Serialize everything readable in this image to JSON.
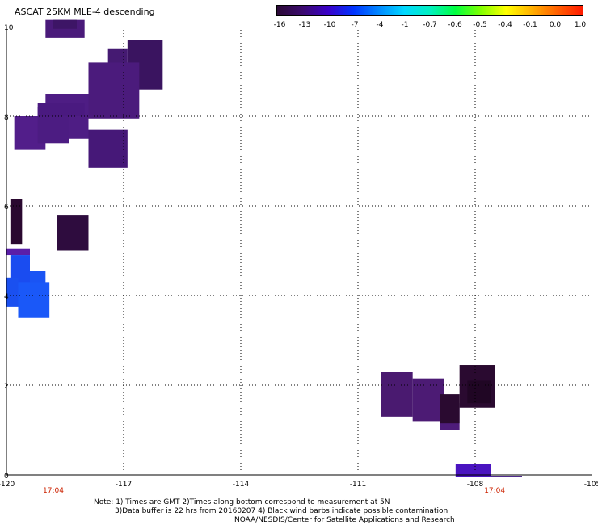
{
  "title": "ASCAT 25KM MLE-4 descending",
  "colorbar": {
    "labels": [
      "-16",
      "-13",
      "-10",
      "-7",
      "-4",
      "-1",
      "-0.7",
      "-0.6",
      "-0.5",
      "-0.4",
      "-0.1",
      "0.0",
      "1.0"
    ],
    "colors": [
      "#2b0a36",
      "#3b0a6e",
      "#3a00c8",
      "#0033ff",
      "#0088ff",
      "#00d8ff",
      "#00f0c0",
      "#00ff40",
      "#80ff00",
      "#ffff00",
      "#ffb000",
      "#ff6000",
      "#ff1a00"
    ]
  },
  "map": {
    "x_ticks": [
      "-120",
      "-117",
      "-114",
      "-111",
      "-108",
      "-105"
    ],
    "y_ticks": [
      "0",
      "2",
      "4",
      "6",
      "8",
      "10"
    ],
    "lon_range": [
      -120,
      -105
    ],
    "lat_range": [
      0,
      10
    ],
    "time_labels": [
      {
        "text": "17:04",
        "lon": -118.8
      },
      {
        "text": "17:04",
        "lon": -107.5
      }
    ],
    "time_label_color": "#cc2200"
  },
  "wind_cells": [
    {
      "lon0": -119.0,
      "lon1": -118.0,
      "lat0": 9.75,
      "lat1": 10.15,
      "color": "#4a1a7a"
    },
    {
      "lon0": -118.8,
      "lon1": -118.2,
      "lat0": 9.95,
      "lat1": 10.15,
      "color": "#3d1566"
    },
    {
      "lon0": -116.9,
      "lon1": -116.0,
      "lat0": 8.6,
      "lat1": 9.7,
      "color": "#3a1460"
    },
    {
      "lon0": -117.4,
      "lon1": -116.9,
      "lat0": 8.3,
      "lat1": 9.5,
      "color": "#451a72"
    },
    {
      "lon0": -117.9,
      "lon1": -116.6,
      "lat0": 7.95,
      "lat1": 9.2,
      "color": "#4b1b7c"
    },
    {
      "lon0": -119.0,
      "lon1": -117.9,
      "lat0": 7.5,
      "lat1": 8.5,
      "color": "#4e1d84"
    },
    {
      "lon0": -119.8,
      "lon1": -119.0,
      "lat0": 7.25,
      "lat1": 8.0,
      "color": "#521e8a"
    },
    {
      "lon0": -119.2,
      "lon1": -118.4,
      "lat0": 7.4,
      "lat1": 8.2,
      "color": "#4c1c82"
    },
    {
      "lon0": -119.2,
      "lon1": -118.0,
      "lat0": 8.0,
      "lat1": 8.3,
      "color": "#4a1a80"
    },
    {
      "lon0": -117.9,
      "lon1": -116.9,
      "lat0": 6.85,
      "lat1": 7.7,
      "color": "#461878"
    },
    {
      "lon0": -119.9,
      "lon1": -119.6,
      "lat0": 5.15,
      "lat1": 6.15,
      "color": "#2a0830"
    },
    {
      "lon0": -118.7,
      "lon1": -117.9,
      "lat0": 5.0,
      "lat1": 5.8,
      "color": "#2e0c3e"
    },
    {
      "lon0": -120.0,
      "lon1": -119.4,
      "lat0": 4.9,
      "lat1": 5.05,
      "color": "#5a1ea8"
    },
    {
      "lon0": -119.9,
      "lon1": -119.4,
      "lat0": 3.9,
      "lat1": 4.9,
      "color": "#1a4cf0"
    },
    {
      "lon0": -119.4,
      "lon1": -119.0,
      "lat0": 3.95,
      "lat1": 4.55,
      "color": "#1a54f4"
    },
    {
      "lon0": -119.7,
      "lon1": -118.9,
      "lat0": 3.5,
      "lat1": 4.3,
      "color": "#1a58f8"
    },
    {
      "lon0": -120.0,
      "lon1": -119.7,
      "lat0": 3.75,
      "lat1": 4.4,
      "color": "#1a50f0"
    },
    {
      "lon0": -110.4,
      "lon1": -109.6,
      "lat0": 1.3,
      "lat1": 2.3,
      "color": "#4a1a70"
    },
    {
      "lon0": -109.6,
      "lon1": -108.8,
      "lat0": 1.2,
      "lat1": 2.15,
      "color": "#4c1b74"
    },
    {
      "lon0": -108.9,
      "lon1": -108.4,
      "lat0": 1.0,
      "lat1": 1.6,
      "color": "#4e1c7a"
    },
    {
      "lon0": -108.9,
      "lon1": -108.4,
      "lat0": 1.15,
      "lat1": 1.8,
      "color": "#2a0a30"
    },
    {
      "lon0": -108.4,
      "lon1": -107.5,
      "lat0": 1.5,
      "lat1": 2.45,
      "color": "#2a0a30"
    },
    {
      "lon0": -108.2,
      "lon1": -107.6,
      "lat0": 1.6,
      "lat1": 2.1,
      "color": "#200624"
    },
    {
      "lon0": -108.5,
      "lon1": -107.6,
      "lat0": -0.05,
      "lat1": 0.25,
      "color": "#4a14c0"
    },
    {
      "lon0": -107.6,
      "lon1": -106.8,
      "lat0": -0.05,
      "lat1": -0.02,
      "color": "#3a1080"
    }
  ],
  "notes": [
    "Note: 1) Times are GMT 2)Times along bottom correspond to measurement at 5N",
    "3)Data buffer is 22 hrs from 20160207 4) Black wind barbs indicate possible contamination",
    "NOAA/NESDIS/Center for Satellite Applications and Research"
  ]
}
